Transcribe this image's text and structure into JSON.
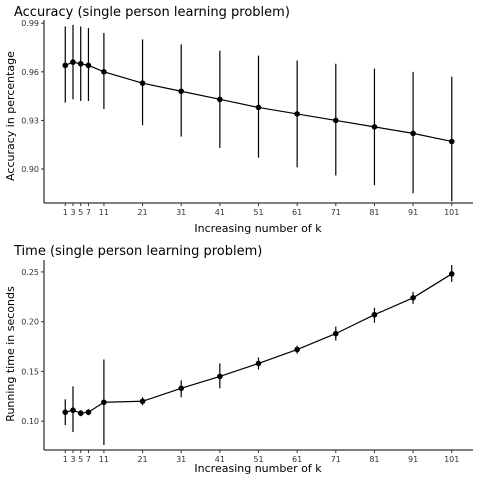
{
  "chart_data": [
    {
      "type": "line",
      "title": "Accuracy (single person learning problem)",
      "xlabel": "Increasing number of k",
      "ylabel": "Accuracy in percentage",
      "x": [
        1,
        3,
        5,
        7,
        11,
        21,
        31,
        41,
        51,
        61,
        71,
        81,
        91,
        101
      ],
      "x_tick_labels": [
        "1",
        "3",
        "5",
        "7",
        "11",
        "21",
        "31",
        "41",
        "51",
        "61",
        "71",
        "81",
        "91",
        "101"
      ],
      "y_ticks": [
        0.9,
        0.93,
        0.96,
        0.99
      ],
      "y_tick_labels": [
        "0.90",
        "0.93",
        "0.96",
        "0.99"
      ],
      "ylim": [
        0.879,
        0.992
      ],
      "xlim": [
        -4.5,
        106.5
      ],
      "grid": false,
      "error_bars": true,
      "series": [
        {
          "values": [
            0.964,
            0.966,
            0.965,
            0.964,
            0.96,
            0.953,
            0.948,
            0.943,
            0.938,
            0.934,
            0.93,
            0.926,
            0.922,
            0.917
          ],
          "lower": [
            0.941,
            0.943,
            0.942,
            0.942,
            0.937,
            0.927,
            0.92,
            0.913,
            0.907,
            0.901,
            0.896,
            0.89,
            0.885,
            0.88
          ],
          "upper": [
            0.988,
            0.989,
            0.988,
            0.987,
            0.984,
            0.98,
            0.977,
            0.973,
            0.97,
            0.967,
            0.965,
            0.962,
            0.96,
            0.957
          ]
        }
      ]
    },
    {
      "type": "line",
      "title": "Time (single person learning problem)",
      "xlabel": "Increasing number of k",
      "ylabel": "Running time in seconds",
      "x": [
        1,
        3,
        5,
        7,
        11,
        21,
        31,
        41,
        51,
        61,
        71,
        81,
        91,
        101
      ],
      "x_tick_labels": [
        "1",
        "3",
        "5",
        "7",
        "11",
        "21",
        "31",
        "41",
        "51",
        "61",
        "71",
        "81",
        "91",
        "101"
      ],
      "y_ticks": [
        0.1,
        0.15,
        0.2,
        0.25
      ],
      "y_tick_labels": [
        "0.10",
        "0.15",
        "0.20",
        "0.25"
      ],
      "ylim": [
        0.071,
        0.262
      ],
      "xlim": [
        -4.5,
        106.5
      ],
      "grid": false,
      "error_bars": true,
      "series": [
        {
          "values": [
            0.109,
            0.111,
            0.108,
            0.109,
            0.119,
            0.12,
            0.133,
            0.145,
            0.158,
            0.172,
            0.188,
            0.207,
            0.224,
            0.248
          ],
          "lower": [
            0.096,
            0.089,
            0.105,
            0.106,
            0.076,
            0.116,
            0.124,
            0.133,
            0.152,
            0.168,
            0.181,
            0.199,
            0.218,
            0.24
          ],
          "upper": [
            0.122,
            0.135,
            0.111,
            0.112,
            0.162,
            0.124,
            0.141,
            0.158,
            0.164,
            0.176,
            0.195,
            0.214,
            0.23,
            0.257
          ]
        }
      ]
    }
  ]
}
